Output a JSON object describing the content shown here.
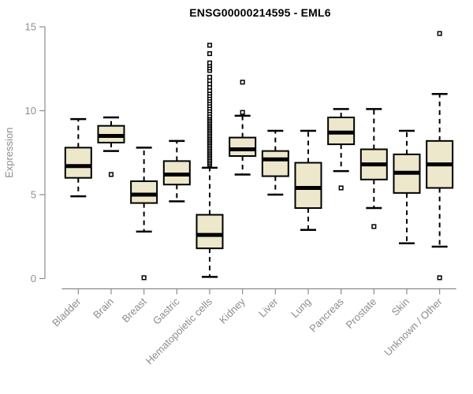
{
  "colors": {
    "background": "#ffffff",
    "box_fill": "#EDE7CB",
    "box_stroke": "#000000",
    "median_color": "#000000",
    "whisker_color": "#000000",
    "axis_color": "#8C8C8C",
    "axis_text_color": "#8C8C8C",
    "title_color": "#000000",
    "outlier_fill": "#ffffff",
    "outlier_stroke": "#000000"
  },
  "chart_data": {
    "type": "boxplot",
    "title": "ENSG00000214595 - EML6",
    "xlabel": "",
    "ylabel": "Expression",
    "ylim": [
      0,
      15
    ],
    "yticks": [
      0,
      5,
      10,
      15
    ],
    "grid": false,
    "legend": "none",
    "x_label_rotation_deg": 45,
    "categories": [
      "Bladder",
      "Brain",
      "Breast",
      "Gastric",
      "Hematopoietic cells",
      "Kidney",
      "Liver",
      "Lung",
      "Pancreas",
      "Prostate",
      "Skin",
      "Unknown / Other"
    ],
    "series": [
      {
        "name": "Bladder",
        "low": 4.9,
        "q1": 6.0,
        "median": 6.7,
        "q3": 7.8,
        "high": 9.5,
        "outliers": []
      },
      {
        "name": "Brain",
        "low": 7.6,
        "q1": 8.1,
        "median": 8.5,
        "q3": 9.1,
        "high": 9.6,
        "outliers": [
          6.2
        ]
      },
      {
        "name": "Breast",
        "low": 2.8,
        "q1": 4.5,
        "median": 5.0,
        "q3": 5.8,
        "high": 7.8,
        "outliers": [
          0.05
        ]
      },
      {
        "name": "Gastric",
        "low": 4.6,
        "q1": 5.6,
        "median": 6.2,
        "q3": 7.0,
        "high": 8.2,
        "outliers": []
      },
      {
        "name": "Hematopoietic cells",
        "low": 0.1,
        "q1": 1.8,
        "median": 2.6,
        "q3": 3.8,
        "high": 6.6,
        "outliers": [
          6.8,
          6.9,
          7.0,
          7.1,
          7.2,
          7.3,
          7.4,
          7.5,
          7.6,
          7.7,
          7.8,
          7.9,
          8.0,
          8.1,
          8.2,
          8.3,
          8.4,
          8.5,
          8.6,
          8.7,
          8.8,
          8.9,
          9.0,
          9.1,
          9.2,
          9.3,
          9.4,
          9.5,
          9.6,
          9.7,
          9.85,
          10.0,
          10.15,
          10.3,
          10.45,
          10.6,
          10.75,
          10.9,
          11.05,
          11.2,
          11.4,
          11.6,
          11.8,
          12.0,
          12.4,
          12.55,
          12.7,
          12.85,
          13.4,
          13.9
        ]
      },
      {
        "name": "Kidney",
        "low": 6.2,
        "q1": 7.3,
        "median": 7.7,
        "q3": 8.4,
        "high": 9.7,
        "outliers": [
          9.9,
          11.7
        ]
      },
      {
        "name": "Liver",
        "low": 5.0,
        "q1": 6.1,
        "median": 7.1,
        "q3": 7.6,
        "high": 8.8,
        "outliers": []
      },
      {
        "name": "Lung",
        "low": 2.9,
        "q1": 4.2,
        "median": 5.4,
        "q3": 6.9,
        "high": 8.8,
        "outliers": []
      },
      {
        "name": "Pancreas",
        "low": 6.4,
        "q1": 8.0,
        "median": 8.7,
        "q3": 9.6,
        "high": 10.1,
        "outliers": [
          5.4
        ]
      },
      {
        "name": "Prostate",
        "low": 4.2,
        "q1": 5.9,
        "median": 6.8,
        "q3": 7.7,
        "high": 10.1,
        "outliers": [
          3.1
        ]
      },
      {
        "name": "Skin",
        "low": 2.1,
        "q1": 5.1,
        "median": 6.3,
        "q3": 7.4,
        "high": 8.8,
        "outliers": []
      },
      {
        "name": "Unknown / Other",
        "low": 1.9,
        "q1": 5.4,
        "median": 6.8,
        "q3": 8.2,
        "high": 11.0,
        "outliers": [
          14.6,
          0.05
        ]
      }
    ]
  }
}
